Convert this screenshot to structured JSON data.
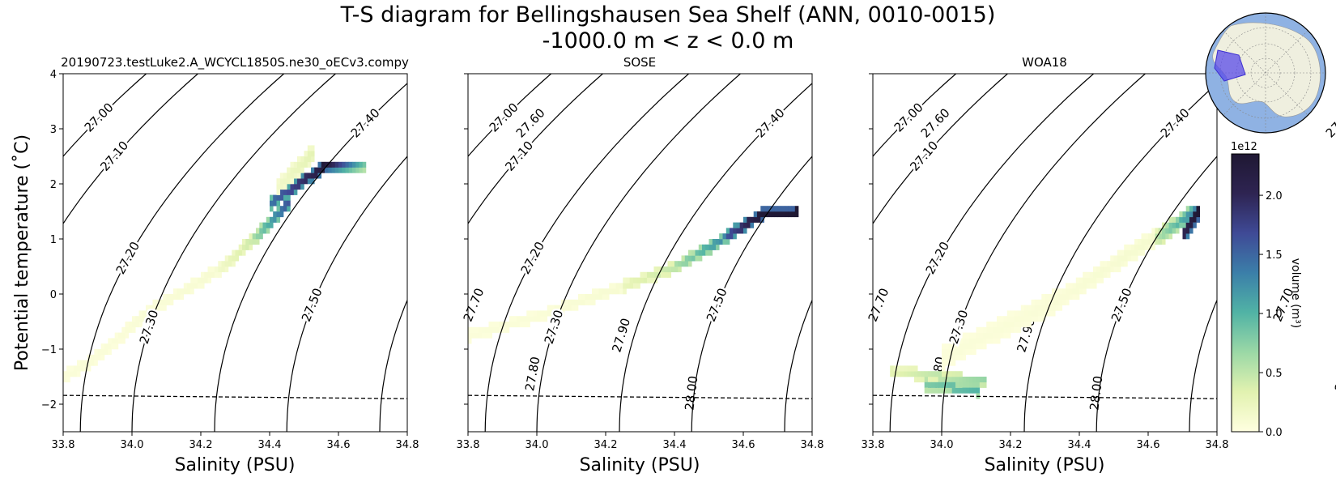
{
  "figure": {
    "title_line1": "T-S diagram for Bellingshausen Sea Shelf (ANN, 0010-0015)",
    "title_line2": "-1000.0 m < z < 0.0 m"
  },
  "chart_data": {
    "type": "heatmap",
    "xlabel": "Salinity (PSU)",
    "ylabel": "Potential temperature (˚C)",
    "xlim": [
      33.8,
      34.8
    ],
    "ylim": [
      -2.5,
      4.0
    ],
    "xticks": [
      "33.8",
      "34.0",
      "34.2",
      "34.4",
      "34.6",
      "34.8"
    ],
    "yticks": [
      "−2",
      "−1",
      "0",
      "1",
      "2",
      "3",
      "4"
    ],
    "freezing_line": {
      "s": [
        33.8,
        34.8
      ],
      "t": [
        -1.84,
        -1.9
      ]
    },
    "density_contours": [
      "27.00",
      "27.10",
      "27.20",
      "27.30",
      "27.40",
      "27.50",
      "27.60",
      "27.70",
      "27.80",
      "27.90",
      "28.00"
    ],
    "colorbar": {
      "label": "volume (m³)",
      "exponent": "1e12",
      "ticks": [
        "0.0",
        "0.5",
        "1.0",
        "1.5",
        "2.0"
      ],
      "max": 2.35,
      "colors": [
        "#ffffe0",
        "#e2f2b0",
        "#9bd8a6",
        "#51b3a5",
        "#3b7fa9",
        "#3f4a96",
        "#2e2452",
        "#1f1833"
      ]
    },
    "panels": [
      {
        "title": "20190723.testLuke2.A_WCYCL1850S.ne30_oECv3.compy",
        "segments": [
          {
            "s": [
              33.8,
              33.88
            ],
            "t": [
              -1.55,
              -1.25
            ],
            "v": [
              0.05,
              0.06
            ],
            "w": 0.22
          },
          {
            "s": [
              33.88,
              34.05
            ],
            "t": [
              -1.25,
              -0.35
            ],
            "v": [
              0.05,
              0.07
            ],
            "w": 0.24
          },
          {
            "s": [
              34.05,
              34.25
            ],
            "t": [
              -0.35,
              0.4
            ],
            "v": [
              0.06,
              0.1
            ],
            "w": 0.22
          },
          {
            "s": [
              34.25,
              34.35
            ],
            "t": [
              0.4,
              0.95
            ],
            "v": [
              0.15,
              0.45
            ],
            "w": 0.2
          },
          {
            "s": [
              34.35,
              34.45
            ],
            "t": [
              0.95,
              1.6
            ],
            "v": [
              0.6,
              1.6
            ],
            "w": 0.22
          },
          {
            "s": [
              34.4,
              34.55
            ],
            "t": [
              1.6,
              2.25
            ],
            "v": [
              1.4,
              2.2
            ],
            "w": 0.22
          },
          {
            "s": [
              34.55,
              34.67
            ],
            "t": [
              2.25,
              2.25
            ],
            "v": [
              2.3,
              0.8
            ],
            "w": 0.05
          },
          {
            "s": [
              34.42,
              34.52
            ],
            "t": [
              1.9,
              2.5
            ],
            "v": [
              0.15,
              0.3
            ],
            "w": 0.4
          }
        ]
      },
      {
        "title": "SOSE",
        "segments": [
          {
            "s": [
              33.8,
              34.0
            ],
            "t": [
              -0.8,
              -0.45
            ],
            "v": [
              0.05,
              0.06
            ],
            "w": 0.3
          },
          {
            "s": [
              34.0,
              34.25
            ],
            "t": [
              -0.45,
              0.1
            ],
            "v": [
              0.06,
              0.1
            ],
            "w": 0.25
          },
          {
            "s": [
              34.25,
              34.4
            ],
            "t": [
              0.1,
              0.45
            ],
            "v": [
              0.25,
              0.5
            ],
            "w": 0.12
          },
          {
            "s": [
              34.4,
              34.55
            ],
            "t": [
              0.45,
              1.0
            ],
            "v": [
              0.6,
              1.3
            ],
            "w": 0.12
          },
          {
            "s": [
              34.55,
              34.65
            ],
            "t": [
              1.0,
              1.4
            ],
            "v": [
              1.6,
              2.3
            ],
            "w": 0.1
          },
          {
            "s": [
              34.65,
              34.75
            ],
            "t": [
              1.4,
              1.45
            ],
            "v": [
              2.3,
              2.35
            ],
            "w": 0.1
          }
        ]
      },
      {
        "title": "WOA18",
        "segments": [
          {
            "s": [
              33.85,
              34.12
            ],
            "t": [
              -1.45,
              -1.65
            ],
            "v": [
              0.3,
              0.7
            ],
            "w": 0.15
          },
          {
            "s": [
              33.95,
              34.1
            ],
            "t": [
              -1.7,
              -1.8
            ],
            "v": [
              0.8,
              1.0
            ],
            "w": 0.08
          },
          {
            "s": [
              34.0,
              34.35
            ],
            "t": [
              -1.2,
              -0.1
            ],
            "v": [
              0.05,
              0.07
            ],
            "w": 0.55
          },
          {
            "s": [
              34.35,
              34.62
            ],
            "t": [
              -0.1,
              1.0
            ],
            "v": [
              0.07,
              0.12
            ],
            "w": 0.45
          },
          {
            "s": [
              34.62,
              34.73
            ],
            "t": [
              0.95,
              1.45
            ],
            "v": [
              0.5,
              1.3
            ],
            "w": 0.35
          },
          {
            "s": [
              34.7,
              34.74
            ],
            "t": [
              1.0,
              1.45
            ],
            "v": [
              2.0,
              2.35
            ],
            "w": 0.2
          }
        ]
      }
    ]
  }
}
